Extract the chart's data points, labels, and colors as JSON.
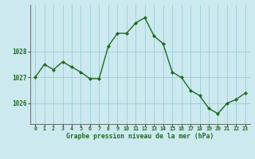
{
  "hours": [
    0,
    1,
    2,
    3,
    4,
    5,
    6,
    7,
    8,
    9,
    10,
    11,
    12,
    13,
    14,
    15,
    16,
    17,
    18,
    19,
    20,
    21,
    22,
    23
  ],
  "pressure": [
    1027.0,
    1027.5,
    1027.3,
    1027.6,
    1027.4,
    1027.2,
    1026.95,
    1026.95,
    1028.2,
    1028.7,
    1028.7,
    1029.1,
    1029.3,
    1028.6,
    1028.3,
    1027.2,
    1027.0,
    1026.5,
    1026.3,
    1025.8,
    1025.6,
    1026.0,
    1026.15,
    1026.4
  ],
  "bg_color": "#cce9f0",
  "line_color": "#1e6b1e",
  "marker_color": "#1e6b1e",
  "grid_color": "#99cdd8",
  "axis_color": "#555555",
  "label_color": "#1e6b1e",
  "xlabel": "Graphe pression niveau de la mer (hPa)",
  "ytick_labels": [
    "1026",
    "1027",
    "1028"
  ],
  "ytick_values": [
    1026,
    1027,
    1028
  ],
  "ylim": [
    1025.2,
    1029.8
  ],
  "xlim": [
    -0.5,
    23.5
  ]
}
